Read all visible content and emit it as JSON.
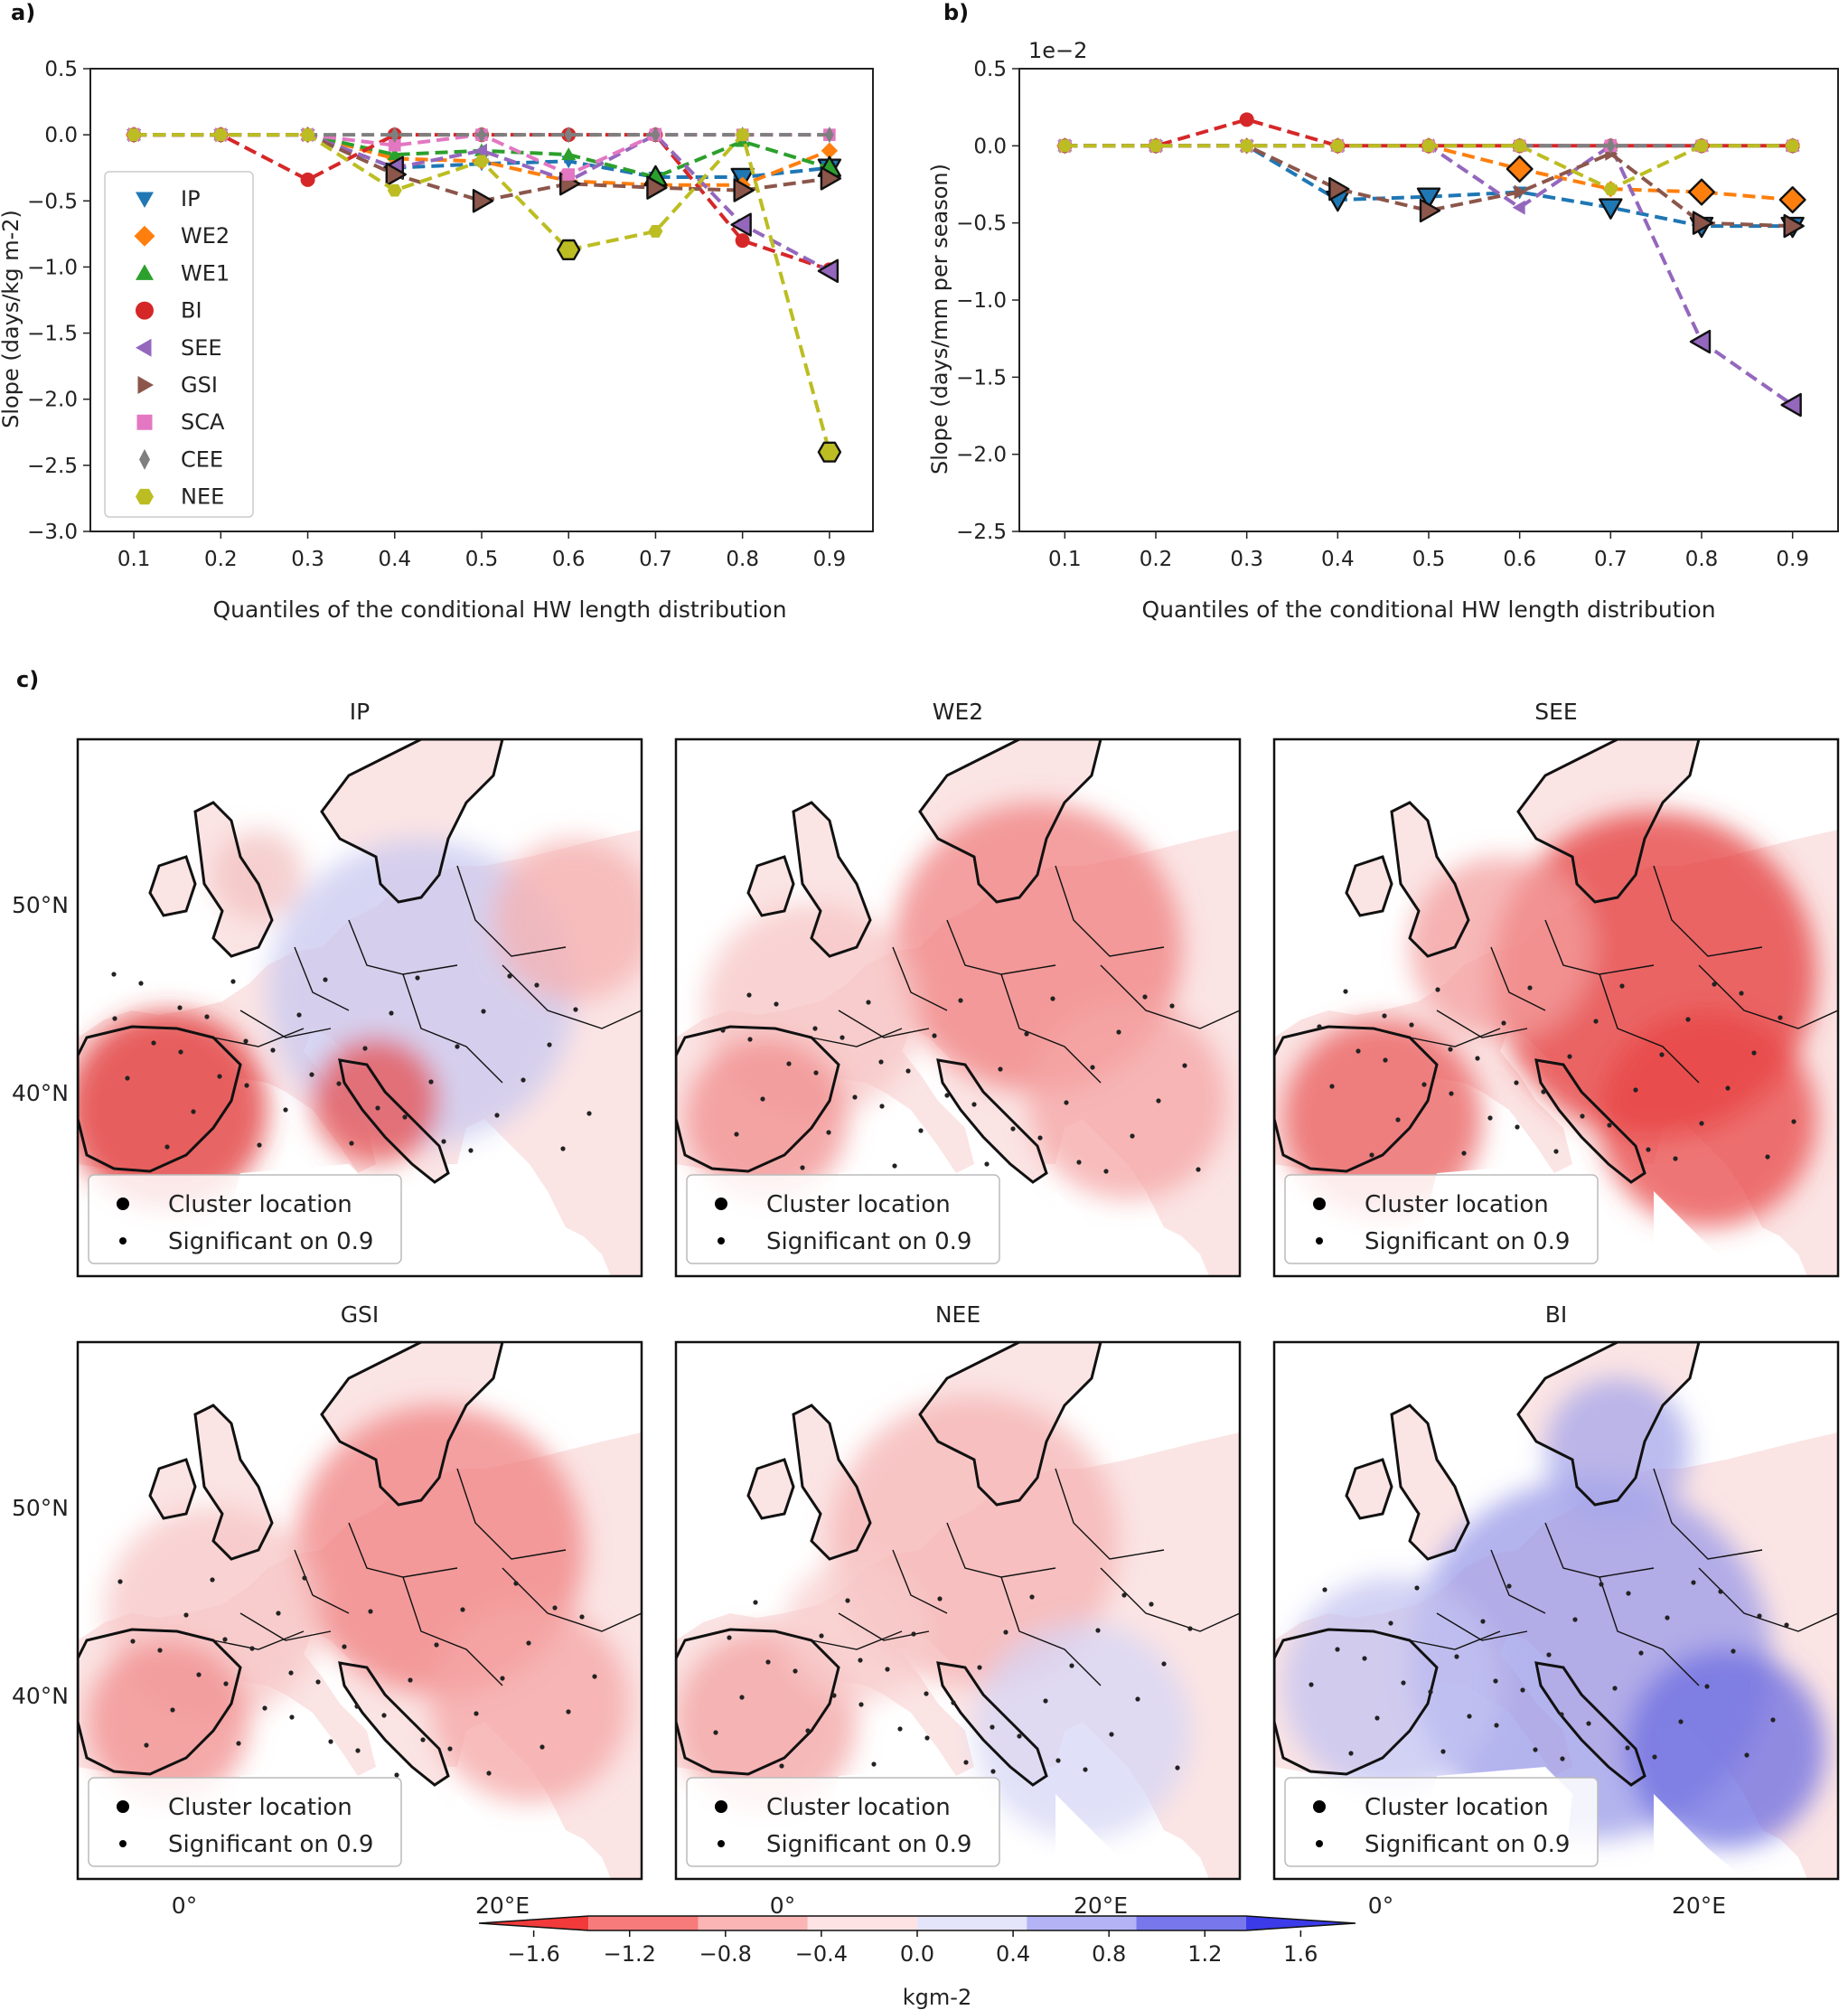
{
  "panel_labels": {
    "a": "a)",
    "b": "b)",
    "c": "c)"
  },
  "legend_markers": {
    "IP": "down-triangle",
    "WE2": "diamond",
    "WE1": "up-triangle",
    "BI": "circle",
    "SEE": "left-triangle",
    "GSI": "right-triangle",
    "SCA": "square",
    "CEE": "thin-diamond",
    "NEE": "hexagon"
  },
  "chart_data": [
    {
      "type": "line",
      "id": "a",
      "title": "",
      "xlabel": "Quantiles of the conditional HW length distribution",
      "ylabel": "Slope (days/kg m-2)",
      "x": [
        0.1,
        0.2,
        0.3,
        0.4,
        0.5,
        0.6,
        0.7,
        0.8,
        0.9
      ],
      "xticks": [
        "0.1",
        "0.2",
        "0.3",
        "0.4",
        "0.5",
        "0.6",
        "0.7",
        "0.8",
        "0.9"
      ],
      "yticks": [
        "0.5",
        "0.0",
        "−0.5",
        "−1.0",
        "−1.5",
        "−2.0",
        "−2.5",
        "−3.0"
      ],
      "ylim": [
        -3.0,
        0.5
      ],
      "xlim": [
        0.05,
        0.95
      ],
      "legend": "center-left",
      "series": [
        {
          "name": "IP",
          "color": "#1f77b4",
          "values": [
            0.0,
            0.0,
            0.0,
            -0.25,
            -0.22,
            -0.2,
            -0.32,
            -0.32,
            -0.25
          ],
          "sig": [
            false,
            false,
            false,
            false,
            false,
            false,
            false,
            true,
            true
          ]
        },
        {
          "name": "WE2",
          "color": "#ff7f0e",
          "values": [
            0.0,
            0.0,
            0.0,
            -0.18,
            -0.2,
            -0.35,
            -0.38,
            -0.38,
            -0.12
          ],
          "sig": [
            false,
            false,
            false,
            false,
            false,
            false,
            false,
            false,
            false
          ]
        },
        {
          "name": "WE1",
          "color": "#2ca02c",
          "values": [
            0.0,
            0.0,
            0.0,
            -0.15,
            -0.12,
            -0.15,
            -0.32,
            -0.05,
            -0.25
          ],
          "sig": [
            false,
            false,
            false,
            false,
            false,
            false,
            true,
            false,
            true
          ]
        },
        {
          "name": "BI",
          "color": "#d62728",
          "values": [
            0.0,
            0.0,
            -0.34,
            0.0,
            0.0,
            0.0,
            0.0,
            -0.8,
            -1.02
          ],
          "sig": [
            false,
            false,
            false,
            false,
            false,
            false,
            false,
            false,
            false
          ]
        },
        {
          "name": "SEE",
          "color": "#9467bd",
          "values": [
            0.0,
            0.0,
            0.0,
            -0.25,
            -0.12,
            -0.35,
            0.0,
            -0.68,
            -1.03
          ],
          "sig": [
            false,
            false,
            false,
            true,
            false,
            false,
            false,
            true,
            true
          ]
        },
        {
          "name": "GSI",
          "color": "#8c564b",
          "values": [
            0.0,
            0.0,
            0.0,
            -0.3,
            -0.5,
            -0.37,
            -0.4,
            -0.42,
            -0.33
          ],
          "sig": [
            false,
            false,
            false,
            true,
            true,
            true,
            true,
            true,
            true
          ]
        },
        {
          "name": "SCA",
          "color": "#e377c2",
          "values": [
            0.0,
            0.0,
            0.0,
            -0.08,
            0.0,
            -0.3,
            0.0,
            0.0,
            0.0
          ],
          "sig": [
            false,
            false,
            false,
            false,
            false,
            false,
            false,
            false,
            false
          ]
        },
        {
          "name": "CEE",
          "color": "#7f7f7f",
          "values": [
            0.0,
            0.0,
            0.0,
            0.0,
            0.0,
            0.0,
            0.0,
            0.0,
            0.0
          ],
          "sig": [
            false,
            false,
            false,
            false,
            false,
            false,
            false,
            false,
            false
          ]
        },
        {
          "name": "NEE",
          "color": "#bcbd22",
          "values": [
            0.0,
            0.0,
            0.0,
            -0.42,
            -0.2,
            -0.87,
            -0.73,
            0.0,
            -2.4
          ],
          "sig": [
            false,
            false,
            false,
            false,
            false,
            true,
            false,
            false,
            true
          ]
        }
      ]
    },
    {
      "type": "line",
      "id": "b",
      "title": "",
      "scale_label": "1e−2",
      "xlabel": "Quantiles of the conditional HW length distribution",
      "ylabel": "Slope (days/mm per season)",
      "x": [
        0.1,
        0.2,
        0.3,
        0.4,
        0.5,
        0.6,
        0.7,
        0.8,
        0.9
      ],
      "xticks": [
        "0.1",
        "0.2",
        "0.3",
        "0.4",
        "0.5",
        "0.6",
        "0.7",
        "0.8",
        "0.9"
      ],
      "yticks": [
        "0.5",
        "0.0",
        "−0.5",
        "−1.0",
        "−1.5",
        "−2.0",
        "−2.5"
      ],
      "ylim": [
        -2.5,
        0.5
      ],
      "xlim": [
        0.05,
        0.95
      ],
      "legend": "none",
      "series": [
        {
          "name": "IP",
          "color": "#1f77b4",
          "values": [
            0.0,
            0.0,
            0.0,
            -0.35,
            -0.33,
            -0.3,
            -0.4,
            -0.52,
            -0.52
          ],
          "sig": [
            false,
            false,
            false,
            true,
            true,
            false,
            true,
            true,
            true
          ]
        },
        {
          "name": "WE2",
          "color": "#ff7f0e",
          "values": [
            0.0,
            0.0,
            0.0,
            0.0,
            0.0,
            -0.15,
            -0.28,
            -0.3,
            -0.35
          ],
          "sig": [
            false,
            false,
            false,
            false,
            false,
            true,
            false,
            true,
            true
          ]
        },
        {
          "name": "WE1",
          "color": "#2ca02c",
          "values": [
            0.0,
            0.0,
            0.0,
            0.0,
            0.0,
            0.0,
            0.0,
            0.0,
            0.0
          ],
          "sig": [
            false,
            false,
            false,
            false,
            false,
            false,
            false,
            false,
            false
          ]
        },
        {
          "name": "BI",
          "color": "#d62728",
          "values": [
            0.0,
            0.0,
            0.17,
            0.0,
            0.0,
            0.0,
            0.0,
            0.0,
            0.0
          ],
          "sig": [
            false,
            false,
            false,
            false,
            false,
            false,
            false,
            false,
            false
          ]
        },
        {
          "name": "SEE",
          "color": "#9467bd",
          "values": [
            0.0,
            0.0,
            0.0,
            0.0,
            0.0,
            -0.4,
            0.0,
            -1.27,
            -1.68
          ],
          "sig": [
            false,
            false,
            false,
            false,
            false,
            false,
            false,
            true,
            true
          ]
        },
        {
          "name": "GSI",
          "color": "#8c564b",
          "values": [
            0.0,
            0.0,
            0.0,
            -0.28,
            -0.42,
            -0.3,
            -0.05,
            -0.5,
            -0.52
          ],
          "sig": [
            false,
            false,
            false,
            true,
            true,
            false,
            false,
            true,
            true
          ]
        },
        {
          "name": "SCA",
          "color": "#e377c2",
          "values": [
            0.0,
            0.0,
            0.0,
            0.0,
            0.0,
            0.0,
            0.0,
            0.0,
            0.0
          ],
          "sig": [
            false,
            false,
            false,
            false,
            false,
            false,
            false,
            false,
            false
          ]
        },
        {
          "name": "CEE",
          "color": "#7f7f7f",
          "values": [
            0.0,
            0.0,
            0.0,
            0.0,
            0.0,
            0.0,
            0.0,
            0.0,
            0.0
          ],
          "sig": [
            false,
            false,
            false,
            false,
            false,
            false,
            false,
            false,
            false
          ]
        },
        {
          "name": "NEE",
          "color": "#bcbd22",
          "values": [
            0.0,
            0.0,
            0.0,
            0.0,
            0.0,
            0.0,
            -0.28,
            0.0,
            0.0
          ],
          "sig": [
            false,
            false,
            false,
            false,
            false,
            false,
            false,
            false,
            false
          ]
        }
      ]
    },
    {
      "type": "heatmap",
      "id": "c",
      "maps": [
        {
          "title": "IP",
          "tone": "mixed-red-west"
        },
        {
          "title": "WE2",
          "tone": "red"
        },
        {
          "title": "SEE",
          "tone": "strong-red"
        },
        {
          "title": "GSI",
          "tone": "red"
        },
        {
          "title": "NEE",
          "tone": "light-red"
        },
        {
          "title": "BI",
          "tone": "blue"
        }
      ],
      "lat_ticks": [
        "50°N",
        "40°N"
      ],
      "lon_ticks": [
        "0°",
        "20°E"
      ],
      "legend_entries": [
        "Cluster location",
        "Significant on 0.9"
      ],
      "colorbar": {
        "label": "kgm-2",
        "ticks": [
          "−1.6",
          "−1.2",
          "−0.8",
          "−0.4",
          "0.0",
          "0.4",
          "0.8",
          "1.2",
          "1.6"
        ],
        "colors": [
          "#f23a3a",
          "#f77b7b",
          "#fbb5b5",
          "#fde3e3",
          "#e4e4fb",
          "#b3b3f5",
          "#7878ec",
          "#3b3bea"
        ]
      }
    }
  ]
}
